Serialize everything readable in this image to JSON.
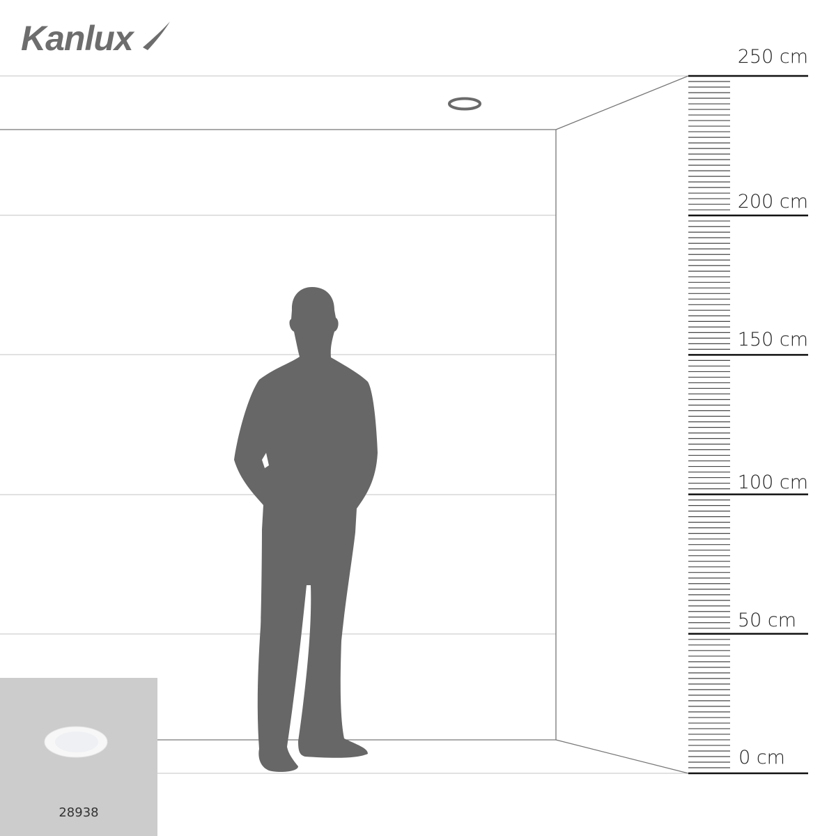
{
  "brand": {
    "logo_text": "Kanlux"
  },
  "scale": {
    "unit": "cm",
    "labels": [
      "250 cm",
      "200 cm",
      "150 cm",
      "100 cm",
      "50 cm",
      "0 cm"
    ]
  },
  "product": {
    "code": "28938"
  },
  "colors": {
    "silhouette": "#676767",
    "panel": "#cccccc",
    "lines": "#c8c8c8"
  }
}
